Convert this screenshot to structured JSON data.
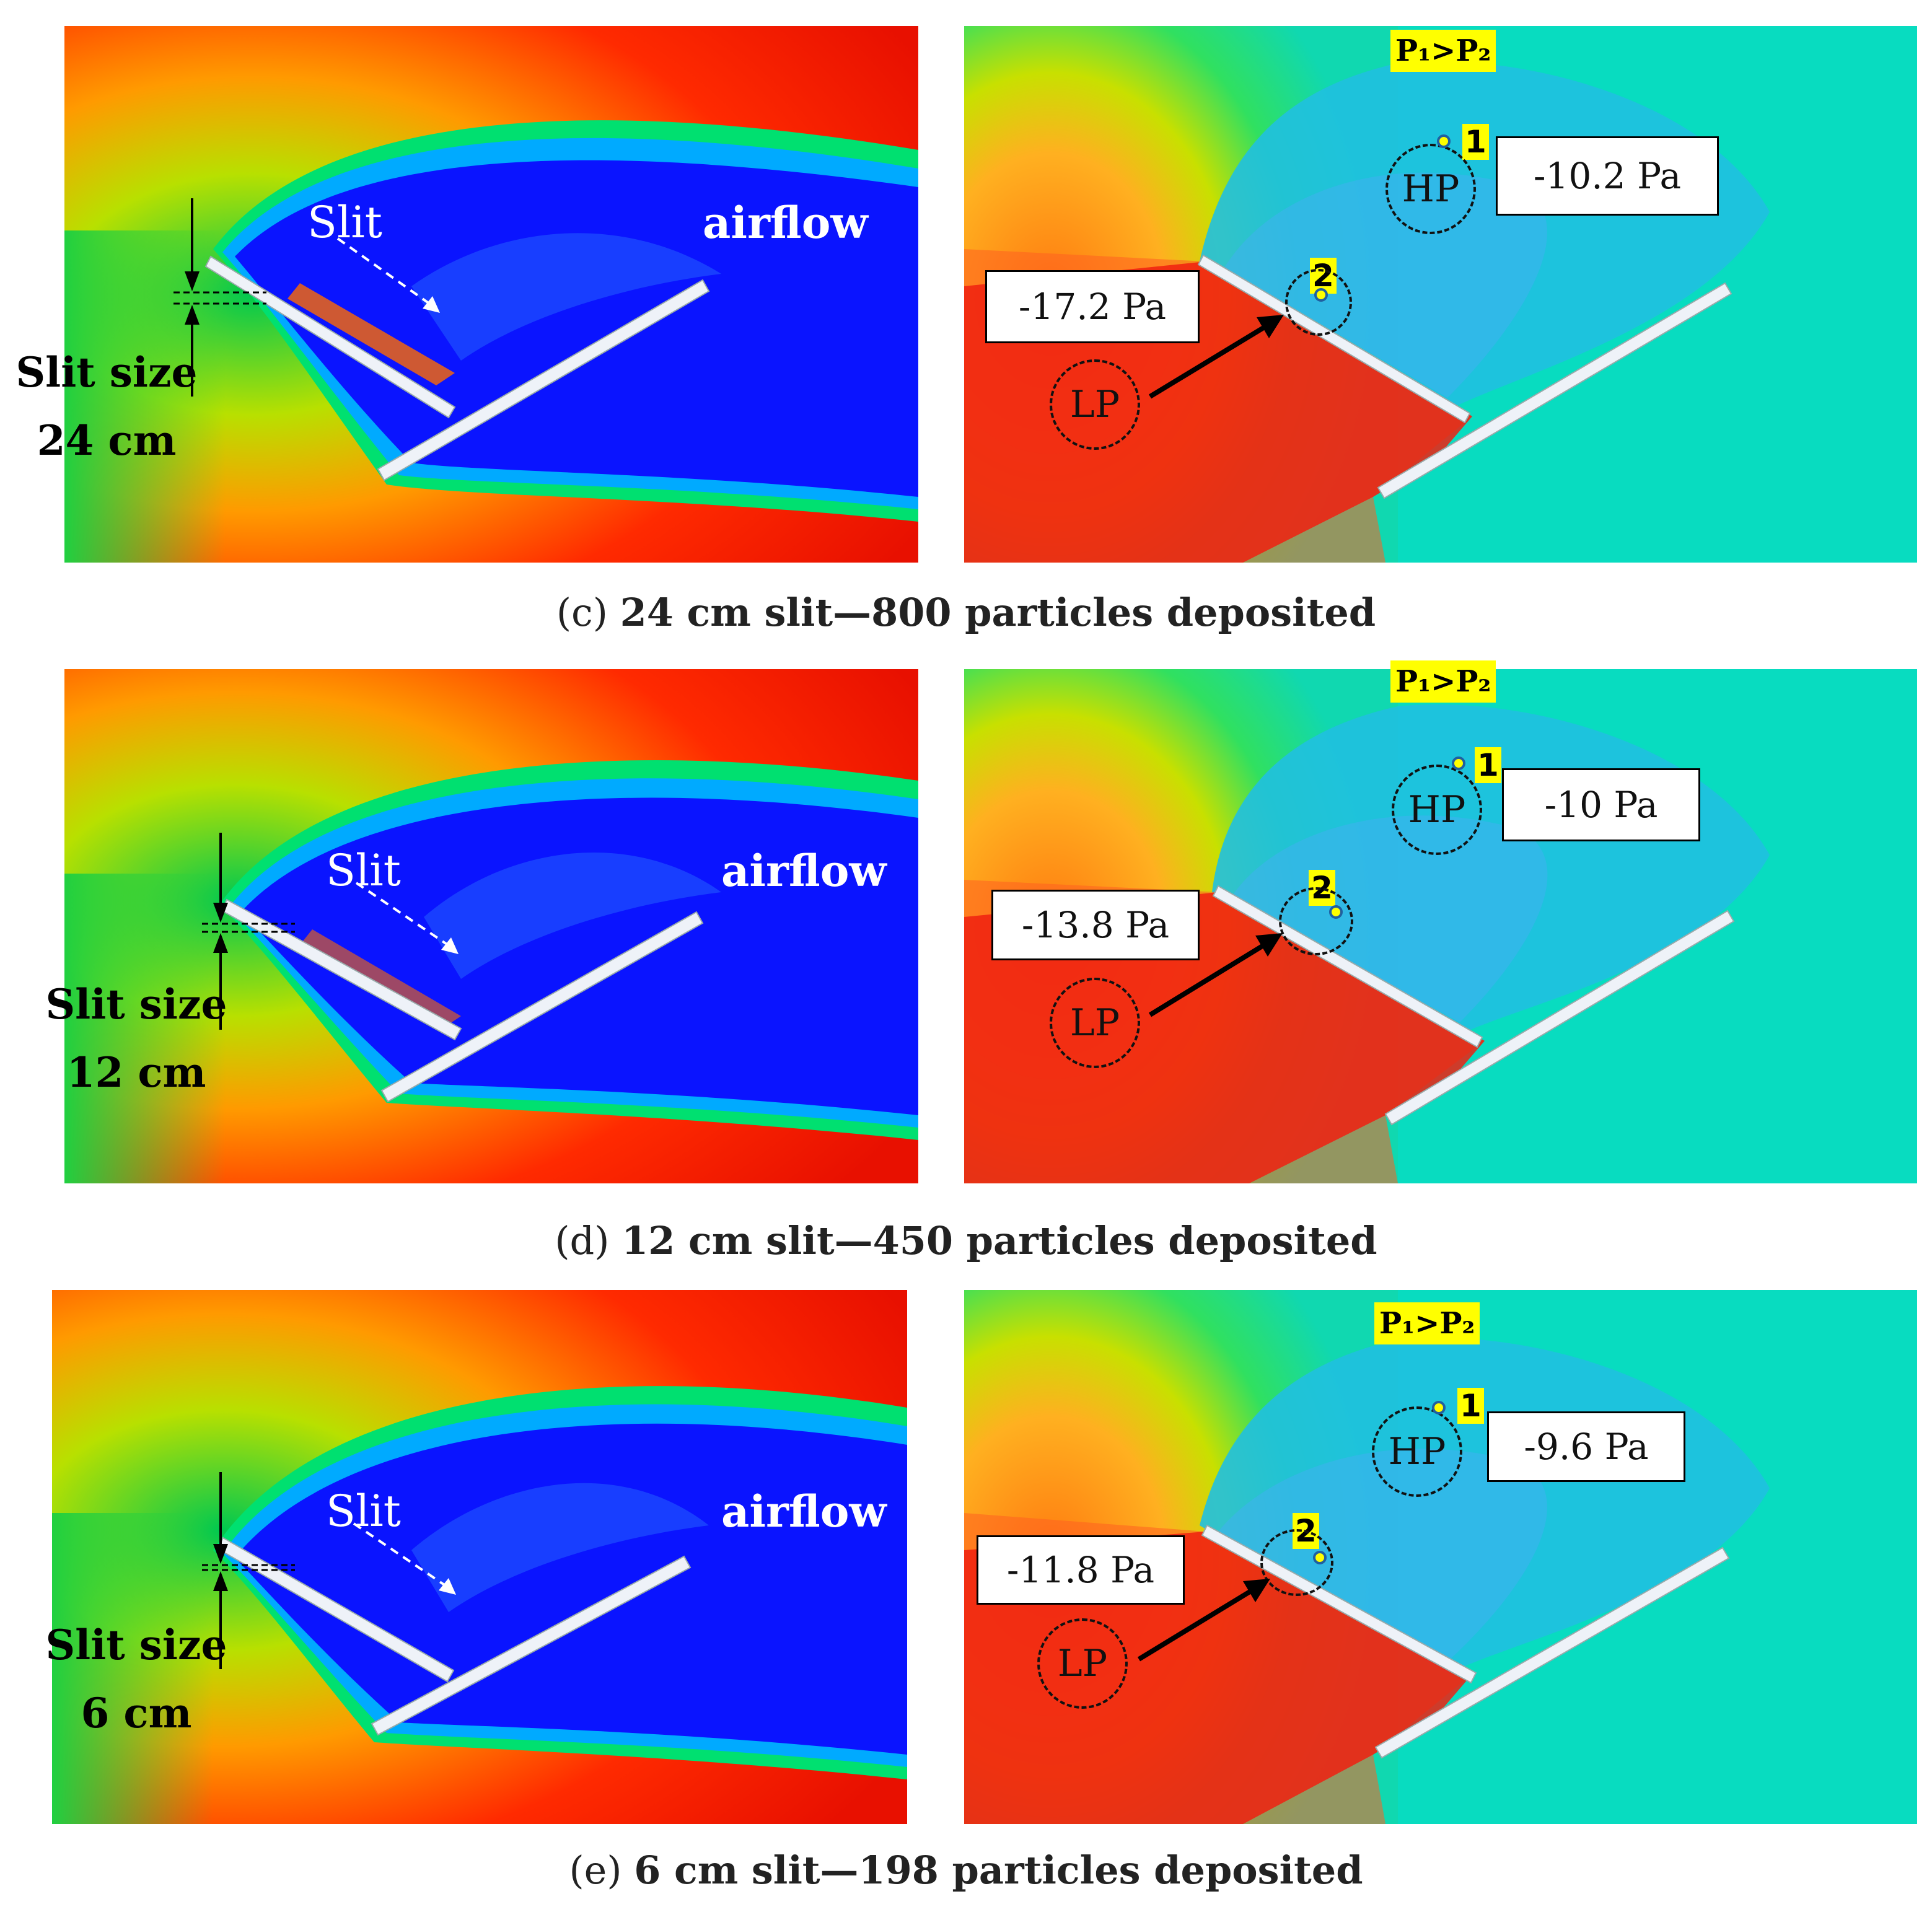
{
  "rows": [
    {
      "id": "c",
      "left": {
        "slit_label": "Slit",
        "airflow_label": "airflow",
        "slit_size_label": "Slit size",
        "slit_size_value": "24 cm"
      },
      "right": {
        "pressure_relation": "P₁>P₂",
        "point1": "1",
        "point2": "2",
        "hp_label": "HP",
        "lp_label": "LP",
        "p1_value": "-10.2 Pa",
        "p2_value": "-17.2 Pa"
      },
      "caption_prefix": "(c) ",
      "caption_bold": "24 cm slit—800 particles deposited"
    },
    {
      "id": "d",
      "left": {
        "slit_label": "Slit",
        "airflow_label": "airflow",
        "slit_size_label": "Slit size",
        "slit_size_value": "12 cm"
      },
      "right": {
        "pressure_relation": "P₁>P₂",
        "point1": "1",
        "point2": "2",
        "hp_label": "HP",
        "lp_label": "LP",
        "p1_value": "-10 Pa",
        "p2_value": "-13.8 Pa"
      },
      "caption_prefix": "(d) ",
      "caption_bold": "12 cm slit—450 particles deposited"
    },
    {
      "id": "e",
      "left": {
        "slit_label": "Slit",
        "airflow_label": "airflow",
        "slit_size_label": "Slit size",
        "slit_size_value": "6 cm"
      },
      "right": {
        "pressure_relation": "P₁>P₂",
        "point1": "1",
        "point2": "2",
        "hp_label": "HP",
        "lp_label": "LP",
        "p1_value": "-9.6 Pa",
        "p2_value": "-11.8 Pa"
      },
      "caption_prefix": "(e) ",
      "caption_bold": "6 cm slit—198 particles deposited"
    }
  ],
  "colors": {
    "high": "#ff1a00",
    "low": "#0a14ff",
    "neutral": "#00d8b8",
    "highlight": "#ffff00"
  }
}
